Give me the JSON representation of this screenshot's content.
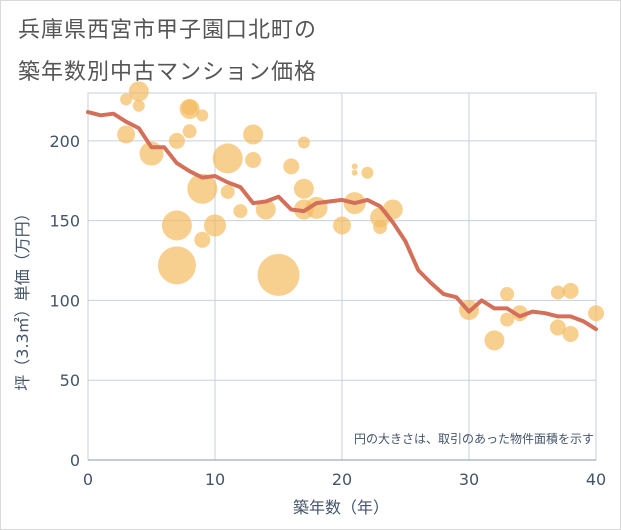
{
  "title_line1": "兵庫県西宮市甲子園口北町の",
  "title_line2": "築年数別中古マンション価格",
  "note": "円の大きさは、取引のあった物件面積を示す",
  "chart_data": {
    "type": "scatter",
    "xlabel": "築年数（年）",
    "ylabel": "坪（3.3㎡）単価（万円）",
    "xlim": [
      0,
      40
    ],
    "ylim": [
      0,
      230
    ],
    "xticks": [
      0,
      10,
      20,
      30,
      40
    ],
    "yticks": [
      0,
      50,
      100,
      150,
      200
    ],
    "grid": true,
    "colors": {
      "bubble": "#f3b95b",
      "line": "#d4705a",
      "grid": "#c7d0d9",
      "text": "#44546a"
    },
    "points": [
      {
        "x": 3,
        "y": 226,
        "r": 6
      },
      {
        "x": 4,
        "y": 231,
        "r": 10
      },
      {
        "x": 4,
        "y": 222,
        "r": 6
      },
      {
        "x": 3,
        "y": 204,
        "r": 9
      },
      {
        "x": 5,
        "y": 192,
        "r": 12
      },
      {
        "x": 7,
        "y": 200,
        "r": 8
      },
      {
        "x": 8,
        "y": 220,
        "r": 10
      },
      {
        "x": 8,
        "y": 221,
        "r": 8
      },
      {
        "x": 8,
        "y": 206,
        "r": 7
      },
      {
        "x": 9,
        "y": 216,
        "r": 6
      },
      {
        "x": 7,
        "y": 147,
        "r": 15
      },
      {
        "x": 7,
        "y": 122,
        "r": 19
      },
      {
        "x": 9,
        "y": 170,
        "r": 15
      },
      {
        "x": 9,
        "y": 138,
        "r": 8
      },
      {
        "x": 10,
        "y": 147,
        "r": 11
      },
      {
        "x": 11,
        "y": 189,
        "r": 15
      },
      {
        "x": 11,
        "y": 168,
        "r": 7
      },
      {
        "x": 12,
        "y": 156,
        "r": 7
      },
      {
        "x": 13,
        "y": 204,
        "r": 10
      },
      {
        "x": 13,
        "y": 188,
        "r": 8
      },
      {
        "x": 14,
        "y": 157,
        "r": 10
      },
      {
        "x": 15,
        "y": 116,
        "r": 21
      },
      {
        "x": 16,
        "y": 184,
        "r": 8
      },
      {
        "x": 17,
        "y": 199,
        "r": 6
      },
      {
        "x": 17,
        "y": 170,
        "r": 10
      },
      {
        "x": 17,
        "y": 157,
        "r": 10
      },
      {
        "x": 18,
        "y": 158,
        "r": 11
      },
      {
        "x": 20,
        "y": 147,
        "r": 9
      },
      {
        "x": 21,
        "y": 184,
        "r": 3
      },
      {
        "x": 21,
        "y": 180,
        "r": 3
      },
      {
        "x": 21,
        "y": 161,
        "r": 11
      },
      {
        "x": 22,
        "y": 180,
        "r": 6
      },
      {
        "x": 23,
        "y": 152,
        "r": 10
      },
      {
        "x": 23,
        "y": 146,
        "r": 7
      },
      {
        "x": 24,
        "y": 157,
        "r": 10
      },
      {
        "x": 30,
        "y": 94,
        "r": 10
      },
      {
        "x": 32,
        "y": 75,
        "r": 10
      },
      {
        "x": 33,
        "y": 104,
        "r": 7
      },
      {
        "x": 33,
        "y": 88,
        "r": 7
      },
      {
        "x": 34,
        "y": 92,
        "r": 8
      },
      {
        "x": 37,
        "y": 105,
        "r": 7
      },
      {
        "x": 37,
        "y": 83,
        "r": 8
      },
      {
        "x": 38,
        "y": 106,
        "r": 8
      },
      {
        "x": 38,
        "y": 79,
        "r": 8
      },
      {
        "x": 40,
        "y": 92,
        "r": 8
      }
    ],
    "trend": {
      "x": [
        0,
        1,
        2,
        3,
        4,
        5,
        6,
        7,
        8,
        9,
        10,
        11,
        12,
        13,
        14,
        15,
        16,
        17,
        18,
        19,
        20,
        21,
        22,
        23,
        24,
        25,
        26,
        27,
        28,
        29,
        30,
        31,
        32,
        33,
        34,
        35,
        36,
        37,
        38,
        39,
        40
      ],
      "y": [
        218,
        216,
        217,
        212,
        208,
        196,
        196,
        186,
        181,
        177,
        178,
        174,
        171,
        161,
        162,
        165,
        157,
        156,
        161,
        162,
        163,
        161,
        163,
        159,
        149,
        137,
        119,
        111,
        104,
        102,
        93,
        100,
        95,
        95,
        90,
        93,
        92,
        90,
        90,
        87,
        82
      ]
    }
  }
}
